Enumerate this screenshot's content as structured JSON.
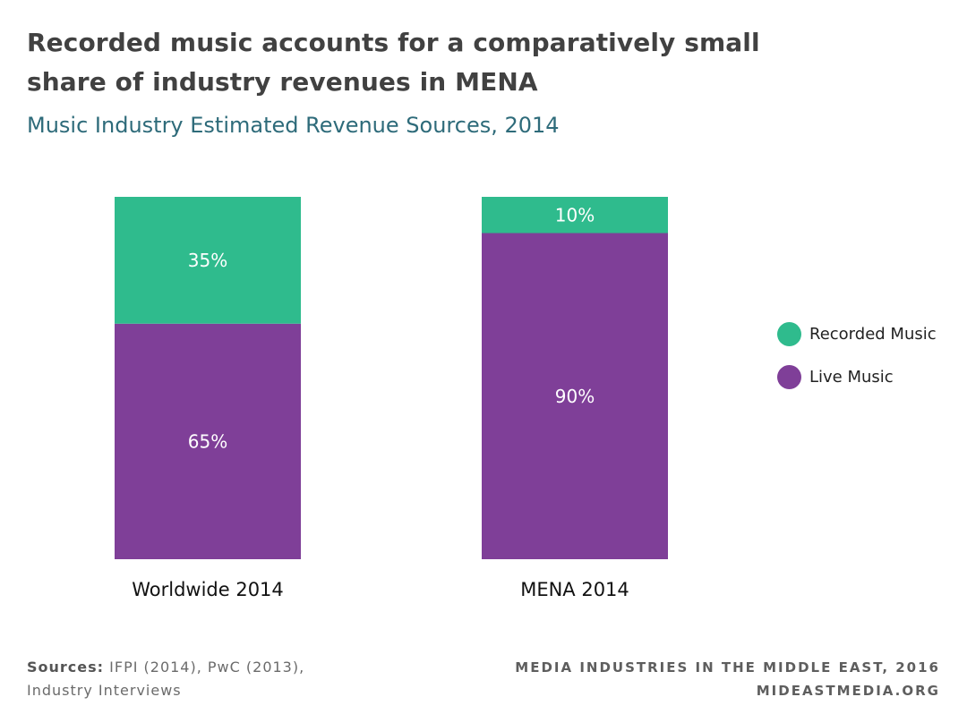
{
  "header": {
    "title": "Recorded music accounts for a comparatively small share of industry revenues in MENA",
    "subtitle": "Music Industry Estimated Revenue Sources, 2014"
  },
  "chart_data": {
    "type": "bar",
    "stacked": true,
    "title": "Music Industry Estimated Revenue Sources, 2014",
    "categories": [
      "Worldwide 2014",
      "MENA 2014"
    ],
    "series": [
      {
        "name": "Live Music",
        "values": [
          65,
          90
        ],
        "labels": [
          "65%",
          "90%"
        ],
        "color": "#7f3f98"
      },
      {
        "name": "Recorded Music",
        "values": [
          35,
          10
        ],
        "labels": [
          "35%",
          "10%"
        ],
        "color": "#2fbb8d"
      }
    ],
    "ylim": [
      0,
      100
    ],
    "xlabel": "",
    "ylabel": "",
    "grid": false,
    "legend": "right"
  },
  "legend": {
    "items": [
      {
        "label": "Recorded Music",
        "color": "#2fbb8d"
      },
      {
        "label": "Live Music",
        "color": "#7f3f98"
      }
    ]
  },
  "footer": {
    "sources_label": "Sources:",
    "sources_text": " IFPI (2014), PwC (2013),",
    "sources_text2": "Industry Interviews",
    "credit_line1": "MEDIA INDUSTRIES IN THE MIDDLE EAST, 2016",
    "credit_line2": "MIDEASTMEDIA.ORG"
  }
}
